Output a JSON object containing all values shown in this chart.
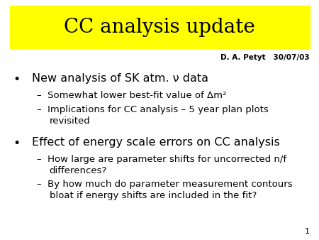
{
  "title": "CC analysis update",
  "title_bg_color": "#FFFF00",
  "title_fontsize": 20,
  "title_font_color": "#000000",
  "author_line": "D. A. Petyt   30/07/03",
  "author_fontsize": 7.5,
  "slide_bg_color": "#FFFFFF",
  "slide_number": "1",
  "bullet1": "New analysis of SK atm. ν data",
  "bullet1_fontsize": 11.5,
  "sub1a": "–  Somewhat lower best-fit value of Δm²",
  "sub1b_line1": "–  Implications for CC analysis – 5 year plan plots",
  "sub1b_line2": "   revisited",
  "bullet2": "Effect of energy scale errors on CC analysis",
  "bullet2_fontsize": 11.5,
  "sub2a_line1": "–  How large are parameter shifts for uncorrected n/f",
  "sub2a_line2": "   differences?",
  "sub2b_line1": "–  By how much do parameter measurement contours",
  "sub2b_line2": "   bloat if energy shifts are included in the fit?",
  "sub_fontsize": 9.5,
  "bullet_color": "#000000",
  "text_color": "#000000"
}
